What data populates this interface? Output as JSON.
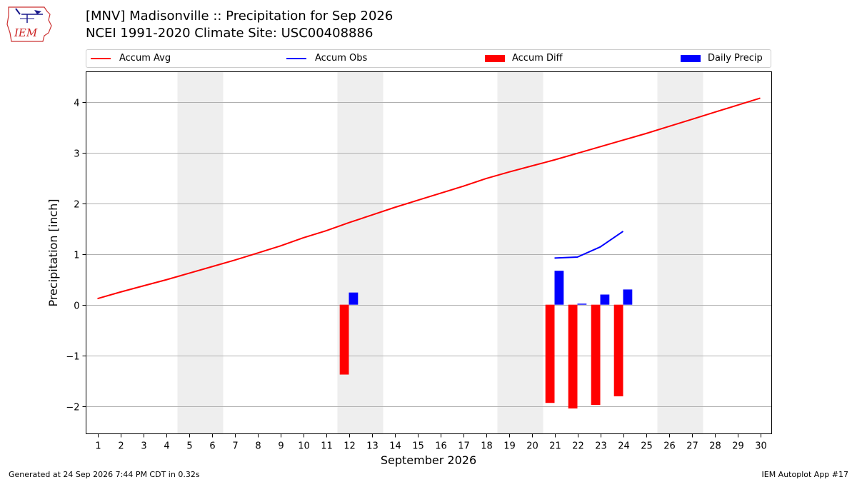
{
  "header": {
    "title": "[MNV] Madisonville :: Precipitation for Sep 2026",
    "subtitle": "NCEI 1991-2020 Climate Site: USC00408886"
  },
  "logo": {
    "text": "IEM"
  },
  "footer": {
    "generated": "Generated at 24 Sep 2026 7:44 PM CDT in 0.32s",
    "app": "IEM Autoplot App #17"
  },
  "legend": [
    {
      "label": "Accum Avg",
      "color": "#ff0000",
      "kind": "line"
    },
    {
      "label": "Accum Obs",
      "color": "#0000ff",
      "kind": "line"
    },
    {
      "label": "Accum Diff",
      "color": "#ff0000",
      "kind": "patch"
    },
    {
      "label": "Daily Precip",
      "color": "#0000ff",
      "kind": "patch"
    }
  ],
  "chart_data": {
    "type": "line",
    "xlabel": "September 2026",
    "ylabel": "Precipitation [inch]",
    "xlim": [
      0.5,
      30.5
    ],
    "ylim": [
      -2.55,
      4.6
    ],
    "grid": "horizontal",
    "legend_position": "top",
    "x_ticks": [
      1,
      2,
      3,
      4,
      5,
      6,
      7,
      8,
      9,
      10,
      11,
      12,
      13,
      14,
      15,
      16,
      17,
      18,
      19,
      20,
      21,
      22,
      23,
      24,
      25,
      26,
      27,
      28,
      29,
      30
    ],
    "y_ticks": [
      -2,
      -1,
      0,
      1,
      2,
      3,
      4
    ],
    "y_tick_labels": [
      "−2",
      "−1",
      "0",
      "1",
      "2",
      "3",
      "4"
    ],
    "weekend_shading": [
      [
        4.5,
        6.5
      ],
      [
        11.5,
        13.5
      ],
      [
        18.5,
        20.5
      ],
      [
        25.5,
        27.5
      ]
    ],
    "series": [
      {
        "name": "Accum Avg",
        "type": "line",
        "color": "#ff0000",
        "x": [
          1,
          2,
          3,
          4,
          5,
          6,
          7,
          8,
          9,
          10,
          11,
          12,
          13,
          14,
          15,
          16,
          17,
          18,
          19,
          20,
          21,
          22,
          23,
          24,
          25,
          26,
          27,
          28,
          29,
          30
        ],
        "values": [
          0.12,
          0.25,
          0.37,
          0.49,
          0.62,
          0.75,
          0.88,
          1.02,
          1.16,
          1.32,
          1.46,
          1.62,
          1.77,
          1.92,
          2.06,
          2.2,
          2.34,
          2.49,
          2.62,
          2.74,
          2.86,
          2.99,
          3.12,
          3.25,
          3.38,
          3.52,
          3.66,
          3.8,
          3.94,
          4.08
        ]
      },
      {
        "name": "Accum Obs",
        "type": "line",
        "color": "#0000ff",
        "x": [
          21,
          22,
          23,
          24
        ],
        "values": [
          0.92,
          0.94,
          1.14,
          1.45
        ]
      },
      {
        "name": "Accum Diff",
        "type": "bar",
        "color": "#ff0000",
        "x": [
          12,
          21,
          22,
          23,
          24
        ],
        "values": [
          -1.38,
          -1.94,
          -2.05,
          -1.98,
          -1.81
        ]
      },
      {
        "name": "Daily Precip",
        "type": "bar",
        "color": "#0000ff",
        "x": [
          12,
          21,
          22,
          23,
          24
        ],
        "values": [
          0.24,
          0.67,
          0.02,
          0.2,
          0.3
        ]
      }
    ]
  }
}
